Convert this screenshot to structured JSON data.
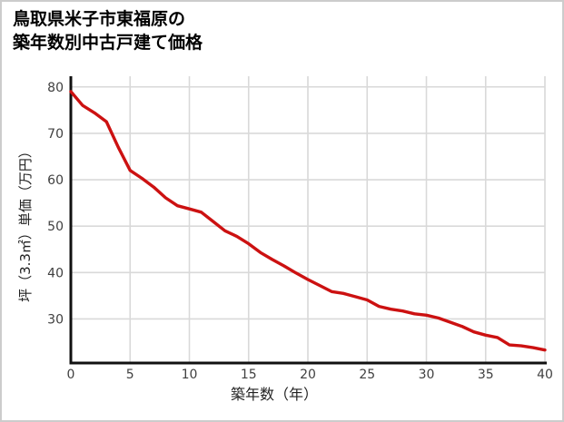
{
  "chart_data": {
    "type": "line",
    "title": "鳥取県米子市東福原の築年数別中古戸建て価格",
    "title_lines": [
      "鳥取県米子市東福原の",
      "築年数別中古戸建て価格"
    ],
    "xlabel": "築年数（年）",
    "ylabel": "坪（3.3㎡）単価（万円）",
    "x": [
      0,
      1,
      2,
      3,
      4,
      5,
      6,
      7,
      8,
      9,
      10,
      11,
      12,
      13,
      14,
      15,
      16,
      17,
      18,
      19,
      20,
      21,
      22,
      23,
      24,
      25,
      26,
      27,
      28,
      29,
      30,
      31,
      32,
      33,
      34,
      35,
      36,
      37,
      38,
      39,
      40
    ],
    "values": [
      79.0,
      76.0,
      74.4,
      72.5,
      67.0,
      62.0,
      60.3,
      58.4,
      56.1,
      54.4,
      53.7,
      53.0,
      51.0,
      49.0,
      47.8,
      46.2,
      44.3,
      42.8,
      41.4,
      39.9,
      38.5,
      37.2,
      35.9,
      35.5,
      34.8,
      34.1,
      32.7,
      32.1,
      31.7,
      31.1,
      30.8,
      30.2,
      29.3,
      28.4,
      27.2,
      26.5,
      26.0,
      24.4,
      24.2,
      23.8,
      23.3
    ],
    "xlim": [
      0,
      40
    ],
    "ylim": [
      20.5,
      82.3
    ],
    "xticks": [
      0,
      5,
      10,
      15,
      20,
      25,
      30,
      35,
      40
    ],
    "yticks": [
      30,
      40,
      50,
      60,
      70,
      80
    ],
    "grid": true,
    "legend": false,
    "colors": {
      "line": "#cc1111",
      "grid": "#d9d9d9",
      "axis": "#111111",
      "tick": "#404040",
      "axis_title": "#222222",
      "border": "#cccccc"
    }
  }
}
